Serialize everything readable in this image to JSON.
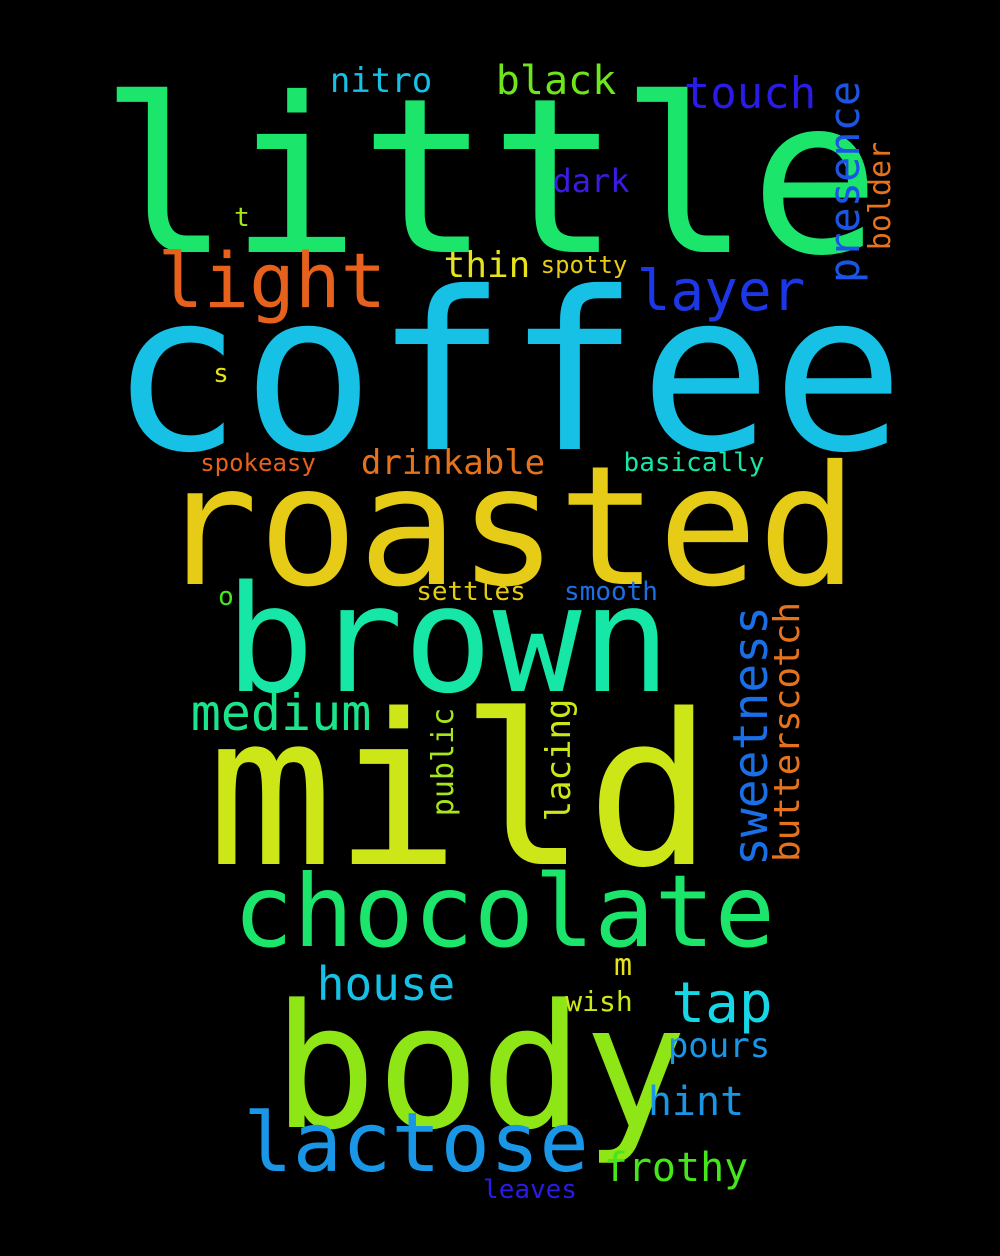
{
  "words": [
    {
      "text": "little",
      "color": "#1be56b"
    },
    {
      "text": "coffee",
      "color": "#17c1e6"
    },
    {
      "text": "roasted",
      "color": "#e6cc16"
    },
    {
      "text": "brown",
      "color": "#16e6a6"
    },
    {
      "text": "mild",
      "color": "#cde617"
    },
    {
      "text": "body",
      "color": "#8ee617"
    },
    {
      "text": "chocolate",
      "color": "#1be56b"
    },
    {
      "text": "lactose",
      "color": "#1a96e6"
    },
    {
      "text": "light",
      "color": "#e6611b"
    },
    {
      "text": "medium",
      "color": "#1be58a"
    },
    {
      "text": "tap",
      "color": "#17d7e6"
    },
    {
      "text": "house",
      "color": "#17c1e6"
    },
    {
      "text": "layer",
      "color": "#1b37e6"
    },
    {
      "text": "presence",
      "color": "#1b55e6"
    },
    {
      "text": "touch",
      "color": "#2a1be6"
    },
    {
      "text": "sweetness",
      "color": "#1b6fe6"
    },
    {
      "text": "butterscotch",
      "color": "#e6731b"
    },
    {
      "text": "bolder",
      "color": "#e6731b"
    },
    {
      "text": "black",
      "color": "#6ee61b"
    },
    {
      "text": "nitro",
      "color": "#17c1e6"
    },
    {
      "text": "dark",
      "color": "#3c1be6"
    },
    {
      "text": "thin",
      "color": "#e6e21b"
    },
    {
      "text": "spotty",
      "color": "#e6cc16"
    },
    {
      "text": "drinkable",
      "color": "#e6731b"
    },
    {
      "text": "basically",
      "color": "#16e6a6"
    },
    {
      "text": "spokeasy",
      "color": "#e6611b"
    },
    {
      "text": "settles",
      "color": "#e6cc16"
    },
    {
      "text": "smooth",
      "color": "#1b6fe6"
    },
    {
      "text": "public",
      "color": "#a6e61b"
    },
    {
      "text": "lacing",
      "color": "#cde617"
    },
    {
      "text": "frothy",
      "color": "#45e61b"
    },
    {
      "text": "hint",
      "color": "#1a96e6"
    },
    {
      "text": "pours",
      "color": "#1a96e6"
    },
    {
      "text": "wish",
      "color": "#cde617"
    },
    {
      "text": "leaves",
      "color": "#2a1be6"
    },
    {
      "text": "m",
      "color": "#e6e21b"
    },
    {
      "text": "t",
      "color": "#a6e61b"
    },
    {
      "text": "s",
      "color": "#e6e21b"
    },
    {
      "text": "o",
      "color": "#45e61b"
    }
  ]
}
